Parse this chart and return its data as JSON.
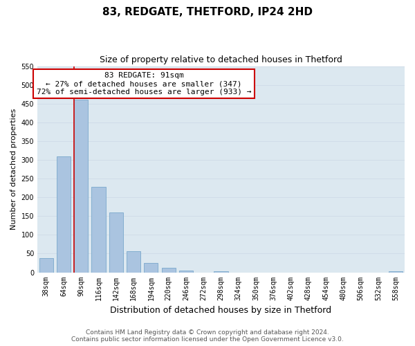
{
  "title": "83, REDGATE, THETFORD, IP24 2HD",
  "subtitle": "Size of property relative to detached houses in Thetford",
  "xlabel": "Distribution of detached houses by size in Thetford",
  "ylabel": "Number of detached properties",
  "bins": [
    "38sqm",
    "64sqm",
    "90sqm",
    "116sqm",
    "142sqm",
    "168sqm",
    "194sqm",
    "220sqm",
    "246sqm",
    "272sqm",
    "298sqm",
    "324sqm",
    "350sqm",
    "376sqm",
    "402sqm",
    "428sqm",
    "454sqm",
    "480sqm",
    "506sqm",
    "532sqm",
    "558sqm"
  ],
  "values": [
    38,
    310,
    460,
    228,
    160,
    57,
    25,
    12,
    5,
    0,
    3,
    0,
    0,
    0,
    0,
    0,
    0,
    0,
    0,
    0,
    2
  ],
  "bar_color": "#aac4e0",
  "bar_edge_color": "#7aa8cc",
  "property_line_color": "#cc0000",
  "annotation_text": "83 REDGATE: 91sqm\n← 27% of detached houses are smaller (347)\n72% of semi-detached houses are larger (933) →",
  "annotation_box_color": "#ffffff",
  "annotation_box_edge_color": "#cc0000",
  "ylim": [
    0,
    550
  ],
  "yticks": [
    0,
    50,
    100,
    150,
    200,
    250,
    300,
    350,
    400,
    450,
    500,
    550
  ],
  "grid_color": "#d0dce8",
  "background_color": "#dce8f0",
  "footer_line1": "Contains HM Land Registry data © Crown copyright and database right 2024.",
  "footer_line2": "Contains public sector information licensed under the Open Government Licence v3.0.",
  "title_fontsize": 11,
  "subtitle_fontsize": 9,
  "xlabel_fontsize": 9,
  "ylabel_fontsize": 8,
  "tick_fontsize": 7,
  "annotation_fontsize": 8,
  "footer_fontsize": 6.5
}
